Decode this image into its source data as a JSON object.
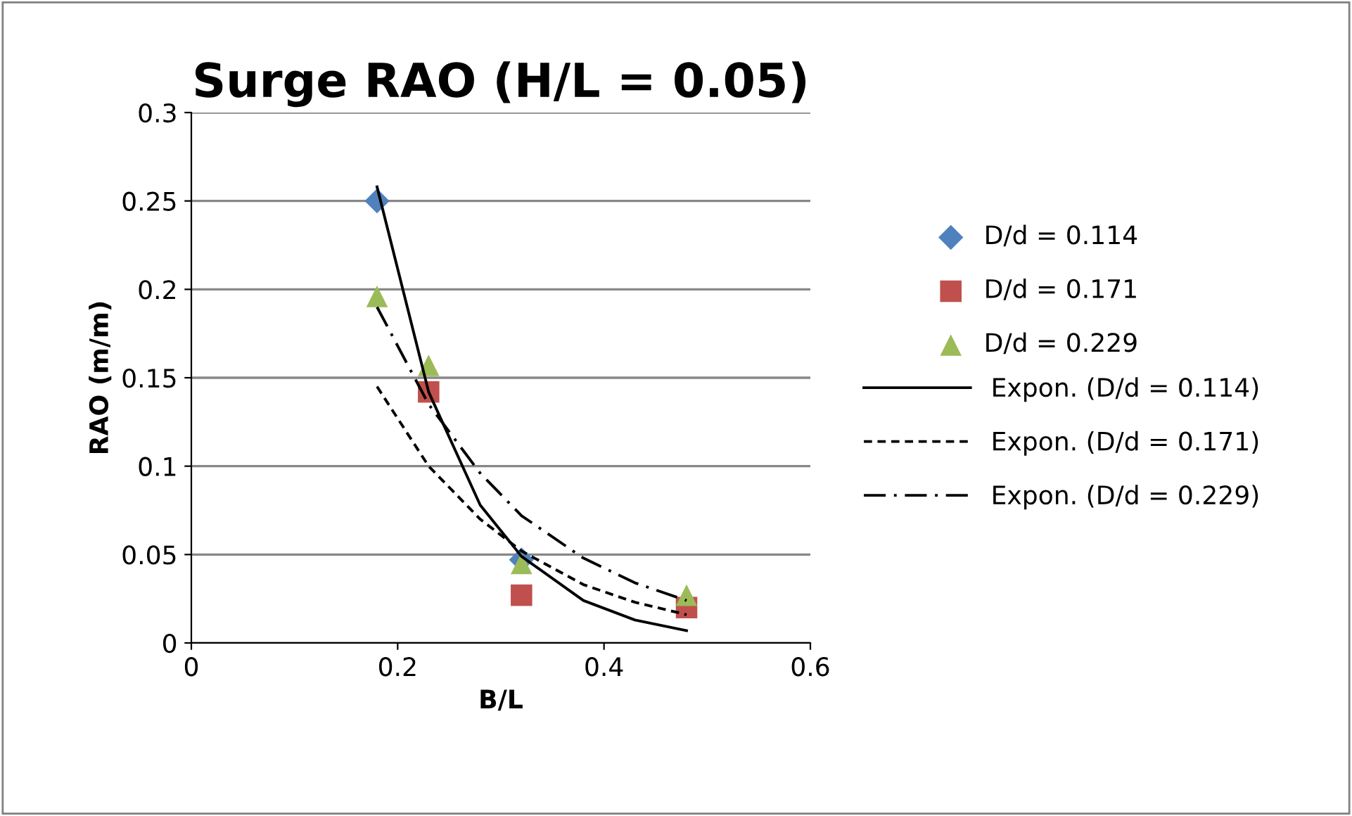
{
  "chart_data": {
    "type": "scatter",
    "title": "Surge RAO (H/L = 0.05)",
    "xlabel": "B/L",
    "ylabel": "RAO (m/m)",
    "x": [
      0.18,
      0.23,
      0.32,
      0.48
    ],
    "series": [
      {
        "name": "D/d = 0.114",
        "color": "#4f81bd",
        "marker": "diamond",
        "values": [
          0.25,
          null,
          0.047,
          null
        ]
      },
      {
        "name": "D/d = 0.171",
        "color": "#c0504d",
        "marker": "square",
        "values": [
          null,
          0.142,
          0.027,
          0.02
        ]
      },
      {
        "name": "D/d = 0.229",
        "color": "#9bbb59",
        "marker": "triangle",
        "values": [
          0.196,
          0.157,
          0.045,
          0.027
        ]
      },
      {
        "name": "Expon. (D/d = 0.114)",
        "type": "line",
        "color": "#000000",
        "line_style": "solid",
        "x": [
          0.18,
          0.23,
          0.28,
          0.32,
          0.38,
          0.43,
          0.48
        ],
        "values": [
          0.258,
          0.142,
          0.078,
          0.049,
          0.024,
          0.013,
          0.007
        ]
      },
      {
        "name": "Expon. (D/d = 0.171)",
        "type": "line",
        "color": "#000000",
        "line_style": "dashed",
        "x": [
          0.18,
          0.23,
          0.28,
          0.32,
          0.38,
          0.43,
          0.48
        ],
        "values": [
          0.145,
          0.1,
          0.07,
          0.052,
          0.033,
          0.023,
          0.016
        ]
      },
      {
        "name": "Expon. (D/d = 0.229)",
        "type": "line",
        "color": "#000000",
        "line_style": "dashdot",
        "x": [
          0.18,
          0.23,
          0.28,
          0.32,
          0.38,
          0.43,
          0.48
        ],
        "values": [
          0.19,
          0.135,
          0.096,
          0.072,
          0.048,
          0.034,
          0.024
        ]
      }
    ],
    "xlim": [
      0,
      0.6
    ],
    "xticks": [
      0,
      0.2,
      0.4,
      0.6
    ],
    "ylim": [
      0,
      0.3
    ],
    "yticks": [
      0,
      0.05,
      0.1,
      0.15,
      0.2,
      0.25,
      0.3
    ],
    "grid": "y",
    "legend": "right"
  }
}
